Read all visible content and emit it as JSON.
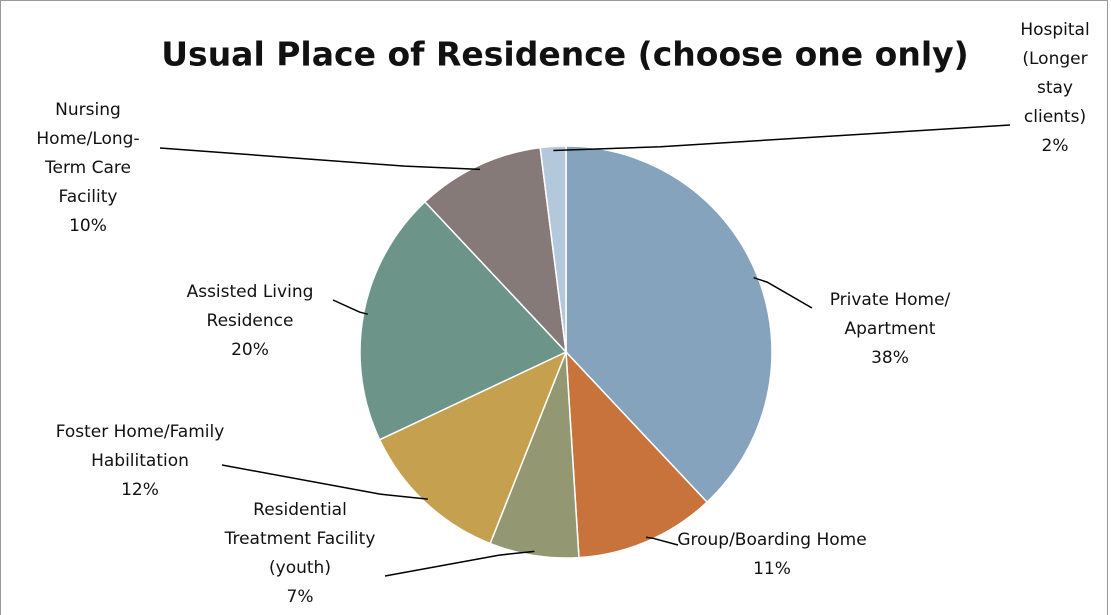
{
  "chart_data": {
    "type": "pie",
    "title": "Usual Place of Residence (choose one only)",
    "categories": [
      "Private Home/ Apartment",
      "Group/Boarding Home",
      "Residential Treatment Facility (youth)",
      "Foster Home/Family Habilitation",
      "Assisted Living Residence",
      "Nursing Home/Long-Term Care Facility",
      "Hospital (Longer stay clients)"
    ],
    "values": [
      38,
      11,
      7,
      12,
      20,
      10,
      2
    ],
    "value_labels": [
      "38%",
      "11%",
      "7%",
      "12%",
      "20%",
      "10%",
      "2%"
    ],
    "colors": [
      "#86a3bd",
      "#c8733c",
      "#949872",
      "#c5a04f",
      "#6c9488",
      "#857a78",
      "#b4c8dc"
    ]
  }
}
